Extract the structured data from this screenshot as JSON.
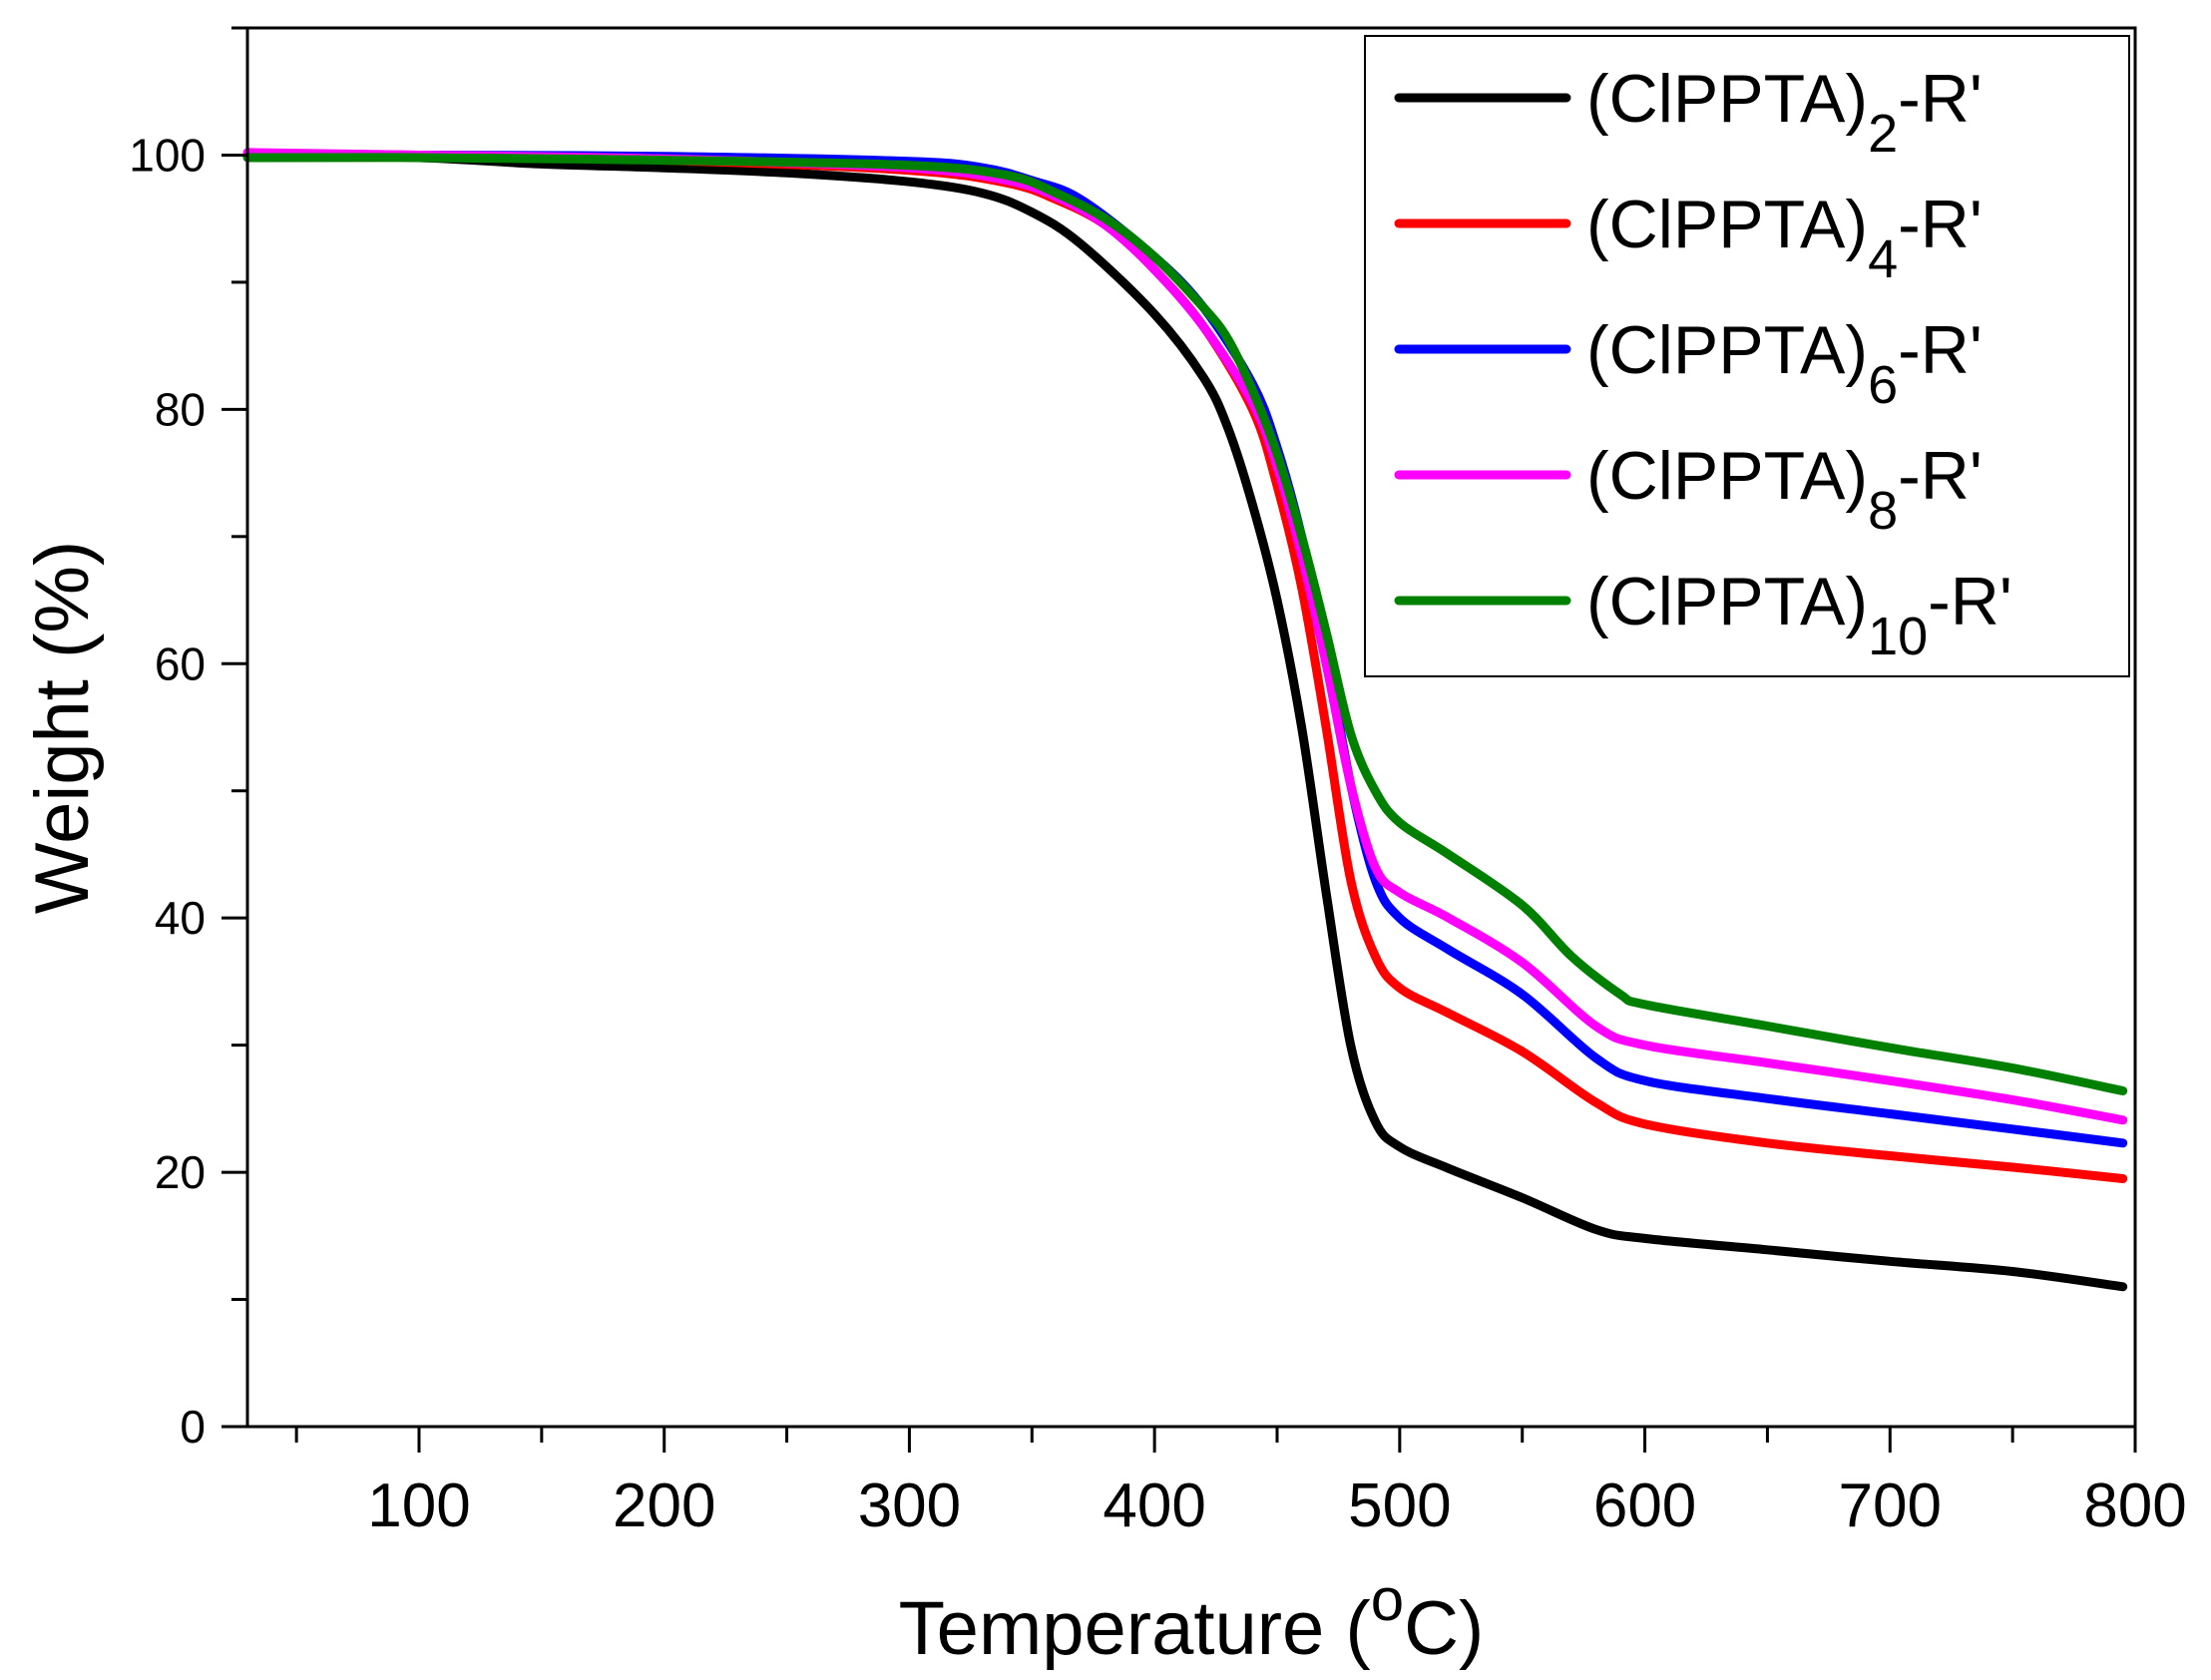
{
  "chart_data": {
    "type": "line",
    "title": "",
    "xlabel": "Temperature (",
    "xlabel_sup": "o",
    "xlabel_unit": "C)",
    "ylabel": "Weight (%)",
    "xlim": [
      30,
      800
    ],
    "ylim": [
      0,
      110
    ],
    "x_ticks": [
      100,
      200,
      300,
      400,
      500,
      600,
      700,
      800
    ],
    "x_tick_labels": [
      "100",
      "200",
      "300",
      "400",
      "500",
      "600",
      "700",
      "800"
    ],
    "y_ticks": [
      0,
      20,
      40,
      60,
      80,
      100
    ],
    "y_tick_labels": [
      "0",
      "20",
      "40",
      "60",
      "80",
      "100"
    ],
    "grid": false,
    "legend_position": "top-right",
    "series": [
      {
        "name": "(ClPPTA)",
        "name_sub": "2",
        "name_suffix": "-R'",
        "color": "#000000",
        "x": [
          30,
          100,
          150,
          200,
          250,
          300,
          330,
          350,
          370,
          400,
          420,
          430,
          440,
          450,
          460,
          470,
          480,
          490,
          500,
          520,
          550,
          580,
          600,
          650,
          700,
          750,
          795
        ],
        "y": [
          100,
          99.8,
          99.3,
          99.0,
          98.6,
          97.9,
          97.0,
          95.5,
          93.0,
          87.5,
          82.5,
          78.5,
          72.5,
          65.0,
          55.0,
          42.0,
          30.0,
          24.0,
          22.0,
          20.3,
          18.0,
          15.5,
          14.8,
          13.9,
          13.0,
          12.2,
          11.0
        ]
      },
      {
        "name": "(ClPPTA)",
        "name_sub": "4",
        "name_suffix": "-R'",
        "color": "#ff0000",
        "x": [
          30,
          100,
          200,
          300,
          340,
          360,
          380,
          400,
          420,
          440,
          450,
          460,
          470,
          480,
          490,
          500,
          520,
          550,
          580,
          600,
          650,
          700,
          750,
          795
        ],
        "y": [
          100,
          100,
          99.6,
          98.8,
          97.8,
          96.5,
          94.5,
          91.0,
          86.5,
          80.0,
          74.0,
          66.0,
          55.0,
          43.0,
          37.0,
          34.5,
          32.5,
          29.5,
          25.5,
          23.8,
          22.3,
          21.3,
          20.4,
          19.5
        ]
      },
      {
        "name": "(ClPPTA)",
        "name_sub": "6",
        "name_suffix": "-R'",
        "color": "#0000ff",
        "x": [
          30,
          100,
          200,
          300,
          330,
          350,
          370,
          400,
          420,
          440,
          450,
          460,
          470,
          480,
          490,
          500,
          520,
          550,
          580,
          600,
          650,
          700,
          750,
          795
        ],
        "y": [
          100,
          100,
          99.9,
          99.5,
          99.0,
          98.0,
          96.5,
          92.0,
          88.0,
          82.0,
          77.0,
          70.0,
          61.0,
          50.5,
          43.0,
          40.0,
          37.5,
          34.0,
          29.0,
          27.2,
          25.8,
          24.6,
          23.4,
          22.3
        ]
      },
      {
        "name": "(ClPPTA)",
        "name_sub": "8",
        "name_suffix": "-R'",
        "color": "#ff00ff",
        "x": [
          30,
          100,
          200,
          300,
          340,
          360,
          380,
          400,
          420,
          440,
          450,
          460,
          470,
          480,
          490,
          500,
          520,
          550,
          580,
          600,
          650,
          700,
          750,
          795
        ],
        "y": [
          100.2,
          100,
          99.7,
          99.0,
          98.0,
          96.7,
          94.5,
          91.0,
          86.5,
          80.5,
          75.5,
          68.5,
          60.0,
          50.5,
          44.0,
          42.0,
          40.0,
          36.5,
          31.5,
          30.0,
          28.6,
          27.2,
          25.7,
          24.1
        ]
      },
      {
        "name": "(ClPPTA)",
        "name_sub": "10",
        "name_suffix": "-R'",
        "color": "#008000",
        "x": [
          30,
          100,
          200,
          300,
          340,
          360,
          380,
          400,
          420,
          430,
          440,
          450,
          460,
          470,
          480,
          490,
          500,
          520,
          550,
          570,
          590,
          600,
          650,
          700,
          750,
          795
        ],
        "y": [
          99.8,
          99.8,
          99.6,
          99.2,
          98.4,
          97.0,
          95.0,
          92.0,
          88.0,
          85.5,
          81.5,
          76.5,
          70.0,
          62.5,
          54.5,
          50.0,
          47.5,
          45.0,
          41.0,
          37.0,
          34.0,
          33.2,
          31.5,
          29.8,
          28.2,
          26.4
        ]
      }
    ]
  }
}
